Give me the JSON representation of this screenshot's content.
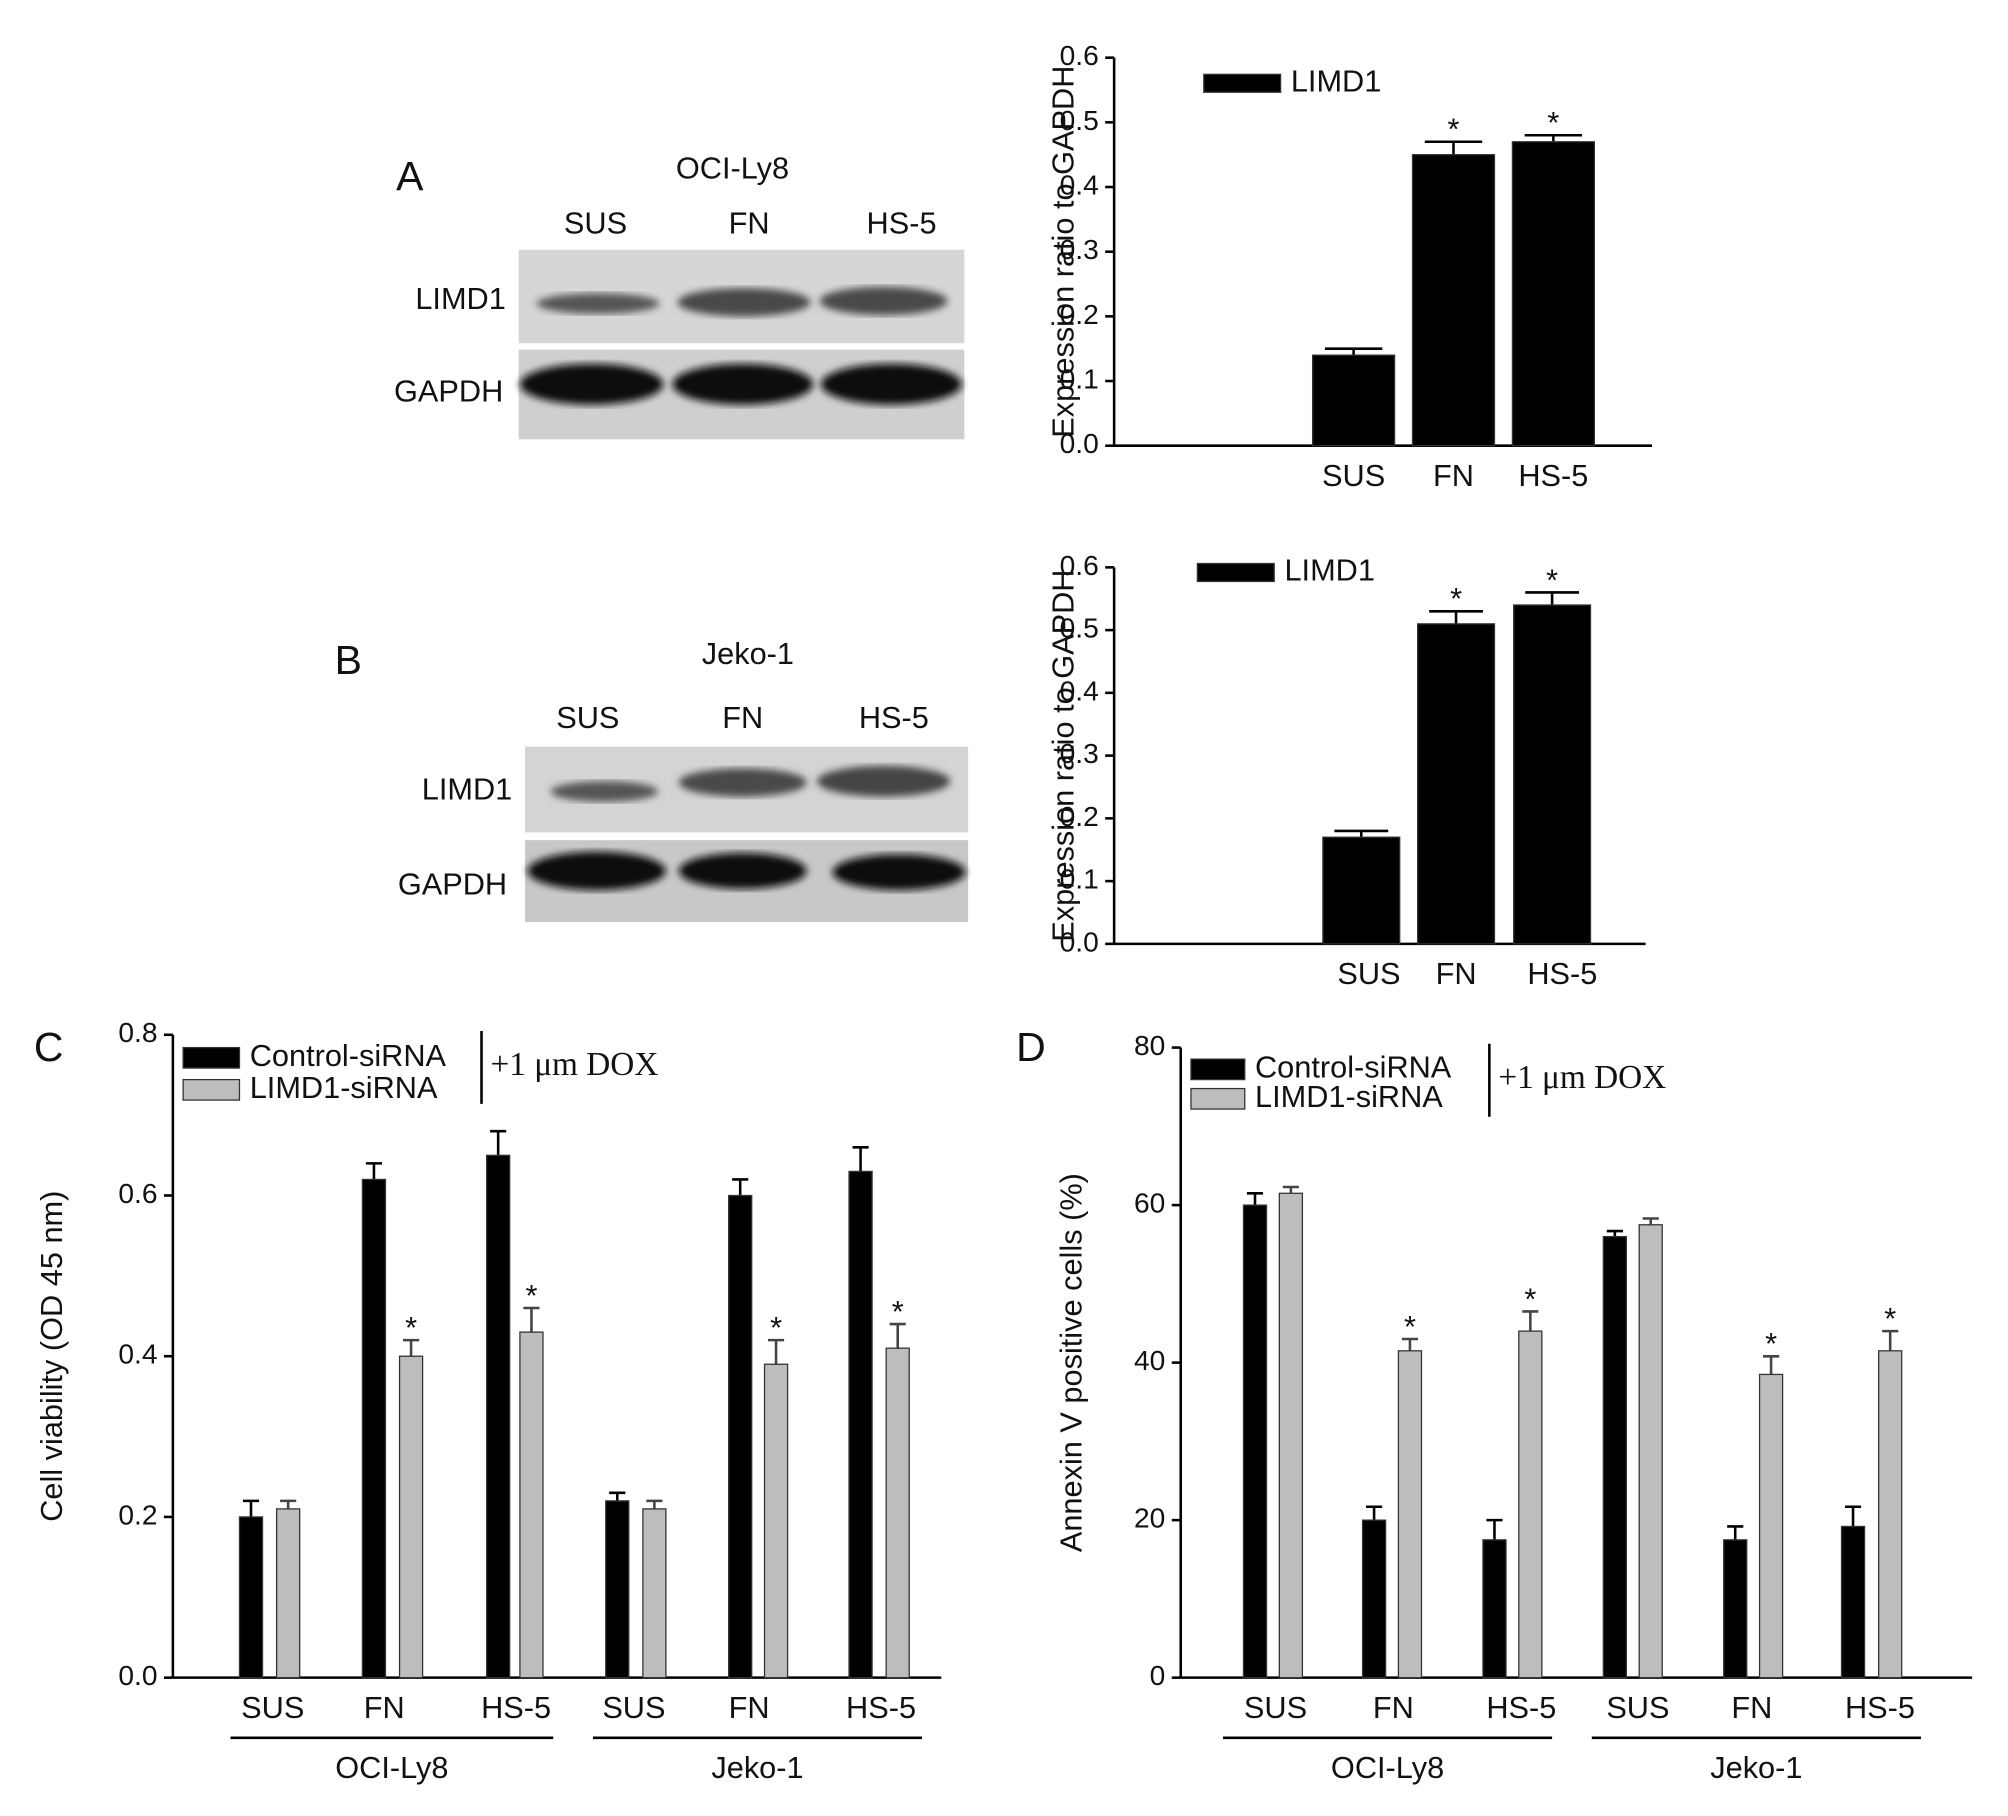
{
  "panel_labels": [
    "A",
    "B",
    "C",
    "D"
  ],
  "blots": [
    {
      "cell_line": "OCI-Ly8",
      "lanes": [
        "SUS",
        "FN",
        "HS-5"
      ],
      "rows": [
        "LIMD1",
        "GAPDH"
      ]
    },
    {
      "cell_line": "Jeko-1",
      "lanes": [
        "SUS",
        "FN",
        "HS-5"
      ],
      "rows": [
        "LIMD1",
        "GAPDH"
      ]
    }
  ],
  "chart_data": [
    {
      "type": "bar",
      "y_label": "Expression ratio to GAPDH",
      "categories": [
        "SUS",
        "FN",
        "HS-5"
      ],
      "series": [
        {
          "name": "LIMD1",
          "color": "#000000",
          "values": [
            0.14,
            0.45,
            0.47
          ],
          "errors": [
            0.01,
            0.02,
            0.01
          ],
          "significance": [
            null,
            "*",
            "*"
          ]
        }
      ],
      "ylim": [
        0,
        0.6
      ],
      "yticks": [
        {
          "value": 0,
          "label": "0.0"
        },
        0.1,
        0.2,
        0.3,
        0.4,
        0.5,
        0.6
      ]
    },
    {
      "type": "bar",
      "y_label": "Expression ratio to GAPDH",
      "categories": [
        "SUS",
        "FN",
        "HS-5"
      ],
      "series": [
        {
          "name": "LIMD1",
          "color": "#000000",
          "values": [
            0.17,
            0.51,
            0.54
          ],
          "errors": [
            0.01,
            0.02,
            0.02
          ],
          "significance": [
            null,
            "*",
            "*"
          ]
        }
      ],
      "ylim": [
        0,
        0.6
      ],
      "yticks": [
        {
          "value": 0,
          "label": "0.0"
        },
        0.1,
        0.2,
        0.3,
        0.4,
        0.5,
        0.6
      ]
    },
    {
      "type": "bar",
      "y_label": "Cell viability (OD 45 nm)",
      "categories": [
        "SUS",
        "FN",
        "HS-5",
        "SUS",
        "FN",
        "HS-5"
      ],
      "groups": [
        "OCI-Ly8",
        "Jeko-1"
      ],
      "legend_note": "+1 μm DOX",
      "series": [
        {
          "name": "Control-siRNA",
          "color": "#000000",
          "values": [
            0.2,
            0.62,
            0.65,
            0.22,
            0.6,
            0.63
          ],
          "errors": [
            0.02,
            0.02,
            0.03,
            0.01,
            0.02,
            0.03
          ],
          "significance": [
            null,
            null,
            null,
            null,
            null,
            null
          ]
        },
        {
          "name": "LIMD1-siRNA",
          "color": "#bdbdbd",
          "values": [
            0.21,
            0.4,
            0.43,
            0.21,
            0.39,
            0.41
          ],
          "errors": [
            0.01,
            0.02,
            0.03,
            0.01,
            0.03,
            0.03
          ],
          "significance": [
            null,
            "*",
            "*",
            null,
            "*",
            "*"
          ]
        }
      ],
      "ylim": [
        0,
        0.8
      ],
      "yticks": [
        {
          "value": 0,
          "label": "0.0"
        },
        0.2,
        0.4,
        0.6,
        0.8
      ]
    },
    {
      "type": "bar",
      "y_label": "Annexin V positive cells (%)",
      "categories": [
        "SUS",
        "FN",
        "HS-5",
        "SUS",
        "FN",
        "HS-5"
      ],
      "groups": [
        "OCI-Ly8",
        "Jeko-1"
      ],
      "legend_note": "+1 μm DOX",
      "series": [
        {
          "name": "Control-siRNA",
          "color": "#000000",
          "values": [
            60,
            20,
            17.5,
            56,
            17.5,
            19.2
          ],
          "errors": [
            1.5,
            1.7,
            2.5,
            0.7,
            1.7,
            2.5
          ],
          "significance": [
            null,
            null,
            null,
            null,
            null,
            null
          ]
        },
        {
          "name": "LIMD1-siRNA",
          "color": "#bdbdbd",
          "values": [
            61.5,
            41.5,
            44,
            57.5,
            38.5,
            41.5
          ],
          "errors": [
            0.8,
            1.5,
            2.5,
            0.8,
            2.3,
            2.5
          ],
          "significance": [
            null,
            "*",
            "*",
            null,
            "*",
            "*"
          ]
        }
      ],
      "ylim": [
        0,
        80
      ],
      "yticks": [
        0,
        20,
        40,
        60,
        80
      ]
    }
  ]
}
